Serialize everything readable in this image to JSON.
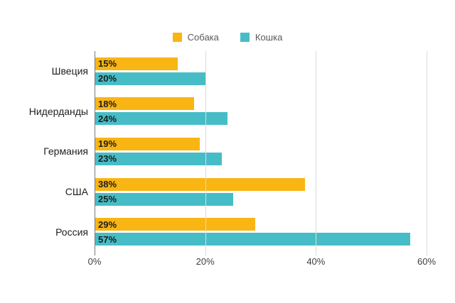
{
  "chart_data": {
    "type": "bar",
    "orientation": "horizontal",
    "categories": [
      "Швеция",
      "Нидерданды",
      "Германия",
      "США",
      "Россия"
    ],
    "series": [
      {
        "name": "Собака",
        "color": "#F9B513",
        "values": [
          15,
          18,
          19,
          38,
          29
        ]
      },
      {
        "name": "Кошка",
        "color": "#46BDC6",
        "values": [
          20,
          24,
          23,
          25,
          57
        ]
      }
    ],
    "value_suffix": "%",
    "xlim": [
      0,
      60
    ],
    "x_ticks": [
      {
        "label": "0%",
        "value": 0
      },
      {
        "label": "20%",
        "value": 20
      },
      {
        "label": "40%",
        "value": 40
      },
      {
        "label": "60%",
        "value": 60
      }
    ],
    "grid": true,
    "legend_position": "top",
    "colors": {
      "axis_line": "#7a7a7a",
      "gridline": "#dcdcdc",
      "tick_text": "#3c4043",
      "category_text": "#1f1f1f",
      "legend_text": "#58595b",
      "bar_label_text": "#1c1c1c",
      "background": "#ffffff"
    }
  }
}
